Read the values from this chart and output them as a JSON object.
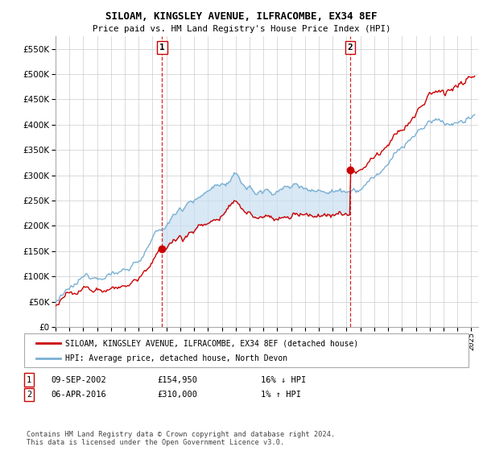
{
  "title": "SILOAM, KINGSLEY AVENUE, ILFRACOMBE, EX34 8EF",
  "subtitle": "Price paid vs. HM Land Registry's House Price Index (HPI)",
  "ylim": [
    0,
    575000
  ],
  "yticks": [
    0,
    50000,
    100000,
    150000,
    200000,
    250000,
    300000,
    350000,
    400000,
    450000,
    500000,
    550000
  ],
  "xlim": [
    1995.0,
    2025.5
  ],
  "sale1_year": 2002.69,
  "sale1_price": 154950,
  "sale2_year": 2016.27,
  "sale2_price": 310000,
  "legend_house_label": "SILOAM, KINGSLEY AVENUE, ILFRACOMBE, EX34 8EF (detached house)",
  "legend_hpi_label": "HPI: Average price, detached house, North Devon",
  "table_row1": [
    "1",
    "09-SEP-2002",
    "£154,950",
    "16% ↓ HPI"
  ],
  "table_row2": [
    "2",
    "06-APR-2016",
    "£310,000",
    "1% ↑ HPI"
  ],
  "footer": "Contains HM Land Registry data © Crown copyright and database right 2024.\nThis data is licensed under the Open Government Licence v3.0.",
  "house_color": "#cc0000",
  "hpi_color": "#7ab0d4",
  "fill_color": "#c8dff0",
  "vline_color": "#cc0000",
  "background_color": "#ffffff",
  "grid_color": "#cccccc",
  "n_points": 400
}
